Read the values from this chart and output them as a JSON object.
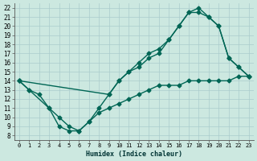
{
  "title": "",
  "xlabel": "Humidex (Indice chaleur)",
  "ylabel": "",
  "bg_color": "#cce8e0",
  "grid_color": "#aacccc",
  "line_color": "#006655",
  "xlim": [
    -0.5,
    23.5
  ],
  "ylim": [
    7.5,
    22.5
  ],
  "xticks": [
    0,
    1,
    2,
    3,
    4,
    5,
    6,
    7,
    8,
    9,
    10,
    11,
    12,
    13,
    14,
    15,
    16,
    17,
    18,
    19,
    20,
    21,
    22,
    23
  ],
  "yticks": [
    8,
    9,
    10,
    11,
    12,
    13,
    14,
    15,
    16,
    17,
    18,
    19,
    20,
    21,
    22
  ],
  "line1_x": [
    0,
    1,
    3,
    4,
    5,
    6,
    7,
    8,
    9,
    10,
    11,
    12,
    13,
    14,
    15,
    16,
    17,
    18,
    19,
    20,
    21,
    22,
    23
  ],
  "line1_y": [
    14,
    13,
    11,
    9,
    8.5,
    8.5,
    9.5,
    11,
    12.5,
    14,
    15,
    15.5,
    16.5,
    17,
    18.5,
    20,
    21.5,
    22,
    21,
    20,
    16.5,
    15.5,
    14.5
  ],
  "line2_x": [
    0,
    1,
    2,
    3,
    4,
    5,
    6,
    7,
    8,
    9,
    10,
    11,
    12,
    13,
    14,
    15,
    16,
    17,
    18,
    19,
    20,
    21,
    22,
    23
  ],
  "line2_y": [
    14,
    13,
    12.5,
    11,
    10,
    9,
    8.5,
    9.5,
    10.5,
    11,
    11.5,
    12,
    12.5,
    13,
    13.5,
    13.5,
    13.5,
    14,
    14,
    14,
    14,
    14,
    14.5,
    14.5
  ],
  "line3_x": [
    0,
    9,
    10,
    11,
    12,
    13,
    14,
    15,
    16,
    17,
    18,
    19,
    20,
    21,
    22,
    23
  ],
  "line3_y": [
    14,
    12.5,
    14,
    15,
    16,
    17,
    17.5,
    18.5,
    20,
    21.5,
    21.5,
    21,
    20,
    16.5,
    15.5,
    14.5
  ],
  "marker": "D",
  "markersize": 2.5,
  "linewidth": 1.0
}
